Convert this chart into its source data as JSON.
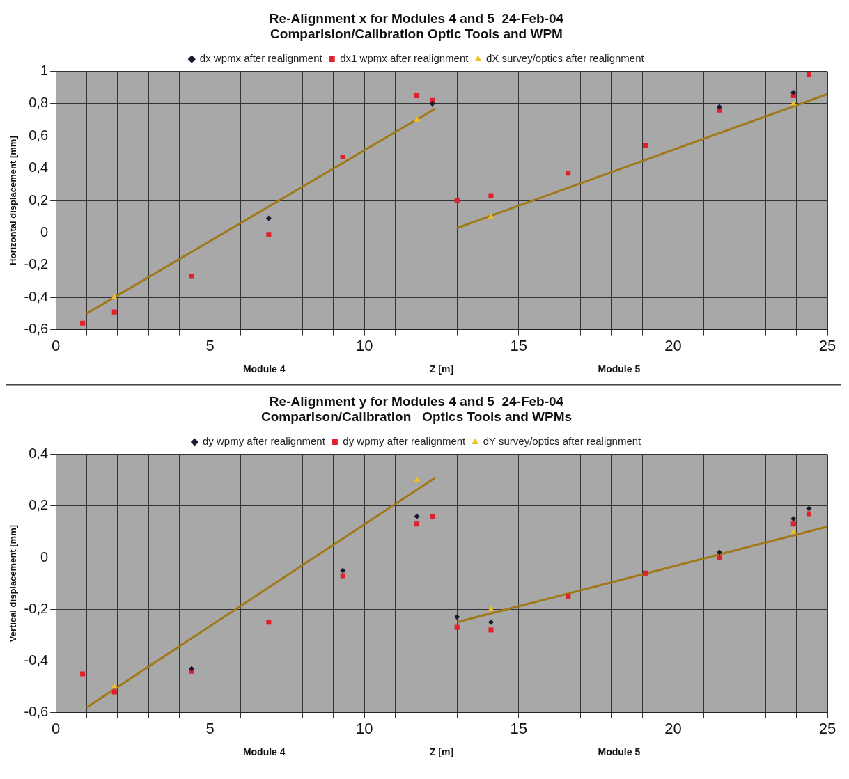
{
  "chart_data": [
    {
      "type": "scatter",
      "title": "Re-Alignment x for Modules 4 and 5  24-Feb-04",
      "subtitle": "Comparision/Calibration Optic Tools and WPM",
      "xlabel": "Z [m]",
      "ylabel": "Horizontal displacement [mm]",
      "annotations": [
        "Module 4",
        "Module 5"
      ],
      "x": [
        0.87,
        1.9,
        4.4,
        6.9,
        9.3,
        11.7,
        12.2,
        13.0,
        14.1,
        16.6,
        19.1,
        21.5,
        23.9,
        24.4
      ],
      "series": [
        {
          "name": "dx wpmx after realignment",
          "color": "#1a1a2e",
          "marker": "diamond",
          "values": [
            null,
            null,
            null,
            0.09,
            null,
            null,
            0.8,
            null,
            null,
            null,
            null,
            0.78,
            0.87,
            null
          ]
        },
        {
          "name": "dx1 wpmx after realignment",
          "color": "#e0202a",
          "marker": "square",
          "values": [
            -0.56,
            -0.49,
            -0.27,
            -0.01,
            0.47,
            0.85,
            0.82,
            0.2,
            0.23,
            0.37,
            0.54,
            0.76,
            0.85,
            0.98
          ]
        },
        {
          "name": "dX survey/optics after realignment",
          "color": "#f0c020",
          "marker": "triangle",
          "x": [
            1.9,
            11.7,
            14.1,
            23.9
          ],
          "values": [
            -0.4,
            0.7,
            0.1,
            0.8
          ]
        },
        {
          "type": "line",
          "color": "#a07818",
          "marker": "none",
          "x": [
            1,
            12.3
          ],
          "values": [
            -0.5,
            0.77
          ]
        },
        {
          "type": "line",
          "color": "#a07818",
          "marker": "none",
          "x": [
            13,
            25
          ],
          "values": [
            0.03,
            0.86
          ]
        }
      ],
      "xlim": [
        0,
        25
      ],
      "xticks": [
        0,
        {
          "value": 1,
          "label": null
        },
        {
          "value": 2,
          "label": null
        },
        {
          "value": 3,
          "label": null
        },
        {
          "value": 4,
          "label": null
        },
        5,
        {
          "value": 6,
          "label": null
        },
        {
          "value": 7,
          "label": null
        },
        {
          "value": 8,
          "label": null
        },
        {
          "value": 9,
          "label": null
        },
        10,
        {
          "value": 11,
          "label": null
        },
        {
          "value": 12,
          "label": null
        },
        {
          "value": 13,
          "label": null
        },
        {
          "value": 14,
          "label": null
        },
        15,
        {
          "value": 16,
          "label": null
        },
        {
          "value": 17,
          "label": null
        },
        {
          "value": 18,
          "label": null
        },
        {
          "value": 19,
          "label": null
        },
        20,
        {
          "value": 21,
          "label": null
        },
        {
          "value": 22,
          "label": null
        },
        {
          "value": 23,
          "label": null
        },
        {
          "value": 24,
          "label": null
        },
        25
      ],
      "ylim": [
        -0.6,
        1
      ],
      "yticks": [
        {
          "value": -0.6,
          "label": "-0,6"
        },
        {
          "value": -0.4,
          "label": "-0,4"
        },
        {
          "value": -0.2,
          "label": "-0,2"
        },
        {
          "value": 0,
          "label": "0"
        },
        {
          "value": 0.2,
          "label": "0,2"
        },
        {
          "value": 0.4,
          "label": "0,4"
        },
        {
          "value": 0.6,
          "label": "0,6"
        },
        {
          "value": 0.8,
          "label": "0,8"
        },
        1
      ],
      "grid": true,
      "legend": "top"
    },
    {
      "type": "scatter",
      "title": "Re-Alignment y for Modules 4 and 5  24-Feb-04",
      "subtitle": "Comparison/Calibration   Optics Tools and WPMs",
      "xlabel": "Z [m]",
      "ylabel": "Vertical displacement [mm]",
      "annotations": [
        "Module 4",
        "Module 5"
      ],
      "x": [
        0.87,
        1.9,
        4.4,
        6.9,
        9.3,
        11.7,
        12.2,
        13.0,
        14.1,
        16.6,
        19.1,
        21.5,
        23.9,
        24.4
      ],
      "series": [
        {
          "name": "dy wpmy after realignment",
          "color": "#1a1a2e",
          "marker": "diamond",
          "values": [
            null,
            null,
            -0.43,
            null,
            -0.05,
            0.16,
            null,
            -0.23,
            -0.25,
            null,
            null,
            0.02,
            0.15,
            0.19
          ]
        },
        {
          "name": "dy wpmy after realignment",
          "color": "#e0202a",
          "marker": "square",
          "values": [
            -0.45,
            -0.52,
            -0.44,
            -0.25,
            -0.07,
            0.13,
            0.16,
            -0.27,
            -0.28,
            -0.15,
            -0.06,
            0.0,
            0.13,
            0.17
          ]
        },
        {
          "name": "dY survey/optics after realignment",
          "color": "#f0c020",
          "marker": "triangle",
          "x": [
            1.9,
            11.7,
            14.1,
            23.9
          ],
          "values": [
            -0.5,
            0.3,
            -0.2,
            0.1
          ]
        },
        {
          "type": "line",
          "color": "#a07818",
          "marker": "none",
          "x": [
            1,
            12.3
          ],
          "values": [
            -0.58,
            0.31
          ]
        },
        {
          "type": "line",
          "color": "#a07818",
          "marker": "none",
          "x": [
            13,
            25
          ],
          "values": [
            -0.25,
            0.12
          ]
        }
      ],
      "xlim": [
        0,
        25
      ],
      "xticks": [
        0,
        {
          "value": 1,
          "label": null
        },
        {
          "value": 2,
          "label": null
        },
        {
          "value": 3,
          "label": null
        },
        {
          "value": 4,
          "label": null
        },
        5,
        {
          "value": 6,
          "label": null
        },
        {
          "value": 7,
          "label": null
        },
        {
          "value": 8,
          "label": null
        },
        {
          "value": 9,
          "label": null
        },
        10,
        {
          "value": 11,
          "label": null
        },
        {
          "value": 12,
          "label": null
        },
        {
          "value": 13,
          "label": null
        },
        {
          "value": 14,
          "label": null
        },
        15,
        {
          "value": 16,
          "label": null
        },
        {
          "value": 17,
          "label": null
        },
        {
          "value": 18,
          "label": null
        },
        {
          "value": 19,
          "label": null
        },
        20,
        {
          "value": 21,
          "label": null
        },
        {
          "value": 22,
          "label": null
        },
        {
          "value": 23,
          "label": null
        },
        {
          "value": 24,
          "label": null
        },
        25
      ],
      "ylim": [
        -0.6,
        0.4
      ],
      "yticks": [
        {
          "value": -0.6,
          "label": "-0,6"
        },
        {
          "value": -0.4,
          "label": "-0,4"
        },
        {
          "value": -0.2,
          "label": "-0,2"
        },
        {
          "value": 0,
          "label": "0"
        },
        {
          "value": 0.2,
          "label": "0,2"
        },
        {
          "value": 0.4,
          "label": "0,4"
        }
      ],
      "grid": true,
      "legend": "top"
    }
  ]
}
